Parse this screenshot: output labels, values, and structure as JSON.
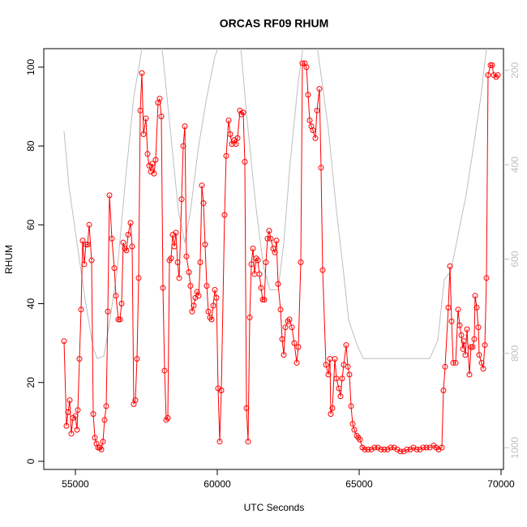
{
  "chart_data": {
    "type": "line",
    "title": "ORCAS RF09 RHUM",
    "xlabel": "UTC Seconds",
    "ylabel": "RHUM",
    "xlim": [
      53886,
      70086
    ],
    "ylim": [
      -2.06,
      104.7
    ],
    "y2lim": [
      1046,
      154
    ],
    "xticks": [
      55000,
      60000,
      65000,
      70000
    ],
    "yticks": [
      0,
      20,
      40,
      60,
      80,
      100
    ],
    "y2ticks": [
      200,
      400,
      600,
      800,
      1000
    ],
    "y2color": "#bebebe",
    "series": [
      {
        "color": "#ff0000",
        "marker": "circle",
        "x": [
          54600,
          54686,
          54743,
          54800,
          54857,
          54914,
          55000,
          55057,
          55086,
          55143,
          55200,
          55257,
          55314,
          55371,
          55429,
          55486,
          55571,
          55629,
          55686,
          55743,
          55800,
          55857,
          55914,
          55971,
          56029,
          56086,
          56143,
          56200,
          56286,
          56371,
          56429,
          56514,
          56571,
          56629,
          56686,
          56743,
          56800,
          56857,
          56943,
          57000,
          57057,
          57114,
          57171,
          57229,
          57286,
          57343,
          57400,
          57486,
          57543,
          57600,
          57657,
          57714,
          57771,
          57829,
          57914,
          57971,
          58029,
          58086,
          58143,
          58200,
          58257,
          58314,
          58371,
          58429,
          58486,
          58543,
          58600,
          58657,
          58743,
          58800,
          58857,
          58914,
          59000,
          59057,
          59114,
          59171,
          59229,
          59286,
          59343,
          59400,
          59457,
          59514,
          59571,
          59629,
          59686,
          59743,
          59800,
          59857,
          59914,
          59971,
          60029,
          60086,
          60143,
          60257,
          60314,
          60400,
          60457,
          60514,
          60600,
          60657,
          60714,
          60800,
          60857,
          60914,
          60971,
          61029,
          61086,
          61143,
          61200,
          61257,
          61314,
          61371,
          61429,
          61486,
          61543,
          61600,
          61657,
          61714,
          61771,
          61829,
          61886,
          61971,
          62029,
          62086,
          62143,
          62229,
          62286,
          62343,
          62400,
          62486,
          62543,
          62629,
          62714,
          62800,
          62857,
          62943,
          63000,
          63086,
          63143,
          63200,
          63257,
          63314,
          63371,
          63457,
          63514,
          63600,
          63657,
          63714,
          63829,
          63914,
          63971,
          64000,
          64057,
          64143,
          64200,
          64286,
          64343,
          64400,
          64457,
          64543,
          64600,
          64657,
          64714,
          64771,
          64829,
          64914,
          64971,
          65029,
          65114,
          65200,
          65314,
          65429,
          65543,
          65657,
          65771,
          65886,
          66000,
          66114,
          66229,
          66343,
          66457,
          66571,
          66686,
          66800,
          66914,
          67029,
          67143,
          67257,
          67371,
          67486,
          67629,
          67714,
          67800,
          67914,
          67971,
          68029,
          68143,
          68200,
          68257,
          68314,
          68400,
          68486,
          68543,
          68600,
          68657,
          68686,
          68743,
          68800,
          68886,
          68943,
          69000,
          69057,
          69086,
          69143,
          69200,
          69229,
          69314,
          69371,
          69429,
          69486,
          69543,
          69629,
          69686,
          69743,
          69829,
          69886
        ],
        "values": [
          30.5,
          9,
          12.5,
          15.5,
          7,
          11,
          11.5,
          8,
          13,
          26,
          38.5,
          56,
          50,
          55,
          55,
          60,
          51,
          12,
          6,
          4.5,
          3.5,
          3.5,
          3,
          5,
          10.5,
          14,
          38,
          67.5,
          56.5,
          49,
          42,
          36,
          36,
          40,
          55.5,
          54,
          53.5,
          57.5,
          60.5,
          54.5,
          14.5,
          15.5,
          26,
          46.5,
          89,
          98.5,
          83,
          87,
          78,
          75,
          73.5,
          75.5,
          73,
          76.5,
          91,
          92,
          87.5,
          44,
          23,
          10.5,
          11,
          51,
          51.5,
          57.5,
          54.5,
          58,
          50.5,
          46.5,
          66.5,
          80,
          85,
          52,
          48,
          44.5,
          38,
          39.5,
          41.5,
          43,
          42,
          50.5,
          70,
          65.5,
          55,
          44.5,
          38,
          36.5,
          36,
          39.5,
          43.5,
          41.5,
          18.5,
          5,
          18,
          62.5,
          77.5,
          86.5,
          83,
          80.5,
          81.5,
          80.5,
          82,
          89,
          88,
          88.5,
          76,
          13.5,
          5,
          36.5,
          50,
          54,
          47.5,
          51.5,
          51,
          47.5,
          44,
          41,
          41,
          50.5,
          56.5,
          58.5,
          56.5,
          54,
          53,
          56,
          45,
          38.5,
          31,
          27,
          34,
          35.5,
          36,
          34,
          30,
          25,
          29,
          50.5,
          101,
          101,
          100,
          93,
          86.5,
          85,
          84,
          82,
          89,
          94.5,
          74.5,
          48.5,
          24.5,
          22,
          26,
          12,
          13.5,
          26,
          21,
          18.5,
          16.5,
          21,
          24.5,
          29.5,
          24,
          22,
          14,
          9.5,
          8,
          6.5,
          6,
          5.5,
          3.5,
          3,
          3,
          3,
          3.5,
          3.5,
          3,
          3,
          3,
          3.5,
          3.5,
          3,
          2.5,
          2.5,
          3,
          3,
          3.5,
          3,
          3,
          3.5,
          3.5,
          3.5,
          4,
          3.5,
          3,
          3.5,
          18,
          24,
          39,
          49.5,
          35.5,
          25,
          25,
          38.5,
          34.5,
          32,
          28.5,
          30.5,
          27,
          33.5,
          22,
          29,
          29,
          31,
          42,
          39,
          34,
          27,
          25,
          23.5,
          29.5,
          46.5,
          98,
          100.5,
          100.5,
          98,
          97.5,
          98
        ]
      },
      {
        "color": "#bebebe",
        "axis": "y2",
        "x": [
          54600,
          54771,
          55057,
          55343,
          55629,
          55771,
          56000,
          56200,
          56486,
          56771,
          57057,
          57343,
          57543,
          57857,
          58057,
          58343,
          58629,
          58857,
          59057,
          59343,
          59629,
          59914,
          60343,
          60629,
          60829,
          61057,
          61343,
          61629,
          61857,
          62143,
          62343,
          62571,
          62857,
          63057,
          63486,
          63686,
          63914,
          64200,
          64429,
          64629,
          64914,
          65143,
          67486,
          67771,
          68000,
          68229,
          68486,
          68771,
          69057,
          69286,
          69486
        ],
        "values": [
          329,
          445,
          566,
          686,
          789,
          811,
          806,
          737,
          617,
          428,
          257,
          154,
          85,
          85,
          154,
          325,
          497,
          566,
          497,
          360,
          257,
          171,
          102,
          102,
          154,
          308,
          480,
          617,
          665,
          665,
          566,
          394,
          222,
          136,
          136,
          222,
          325,
          497,
          617,
          729,
          780,
          811,
          811,
          772,
          643,
          626,
          549,
          463,
          351,
          257,
          154
        ]
      }
    ]
  }
}
